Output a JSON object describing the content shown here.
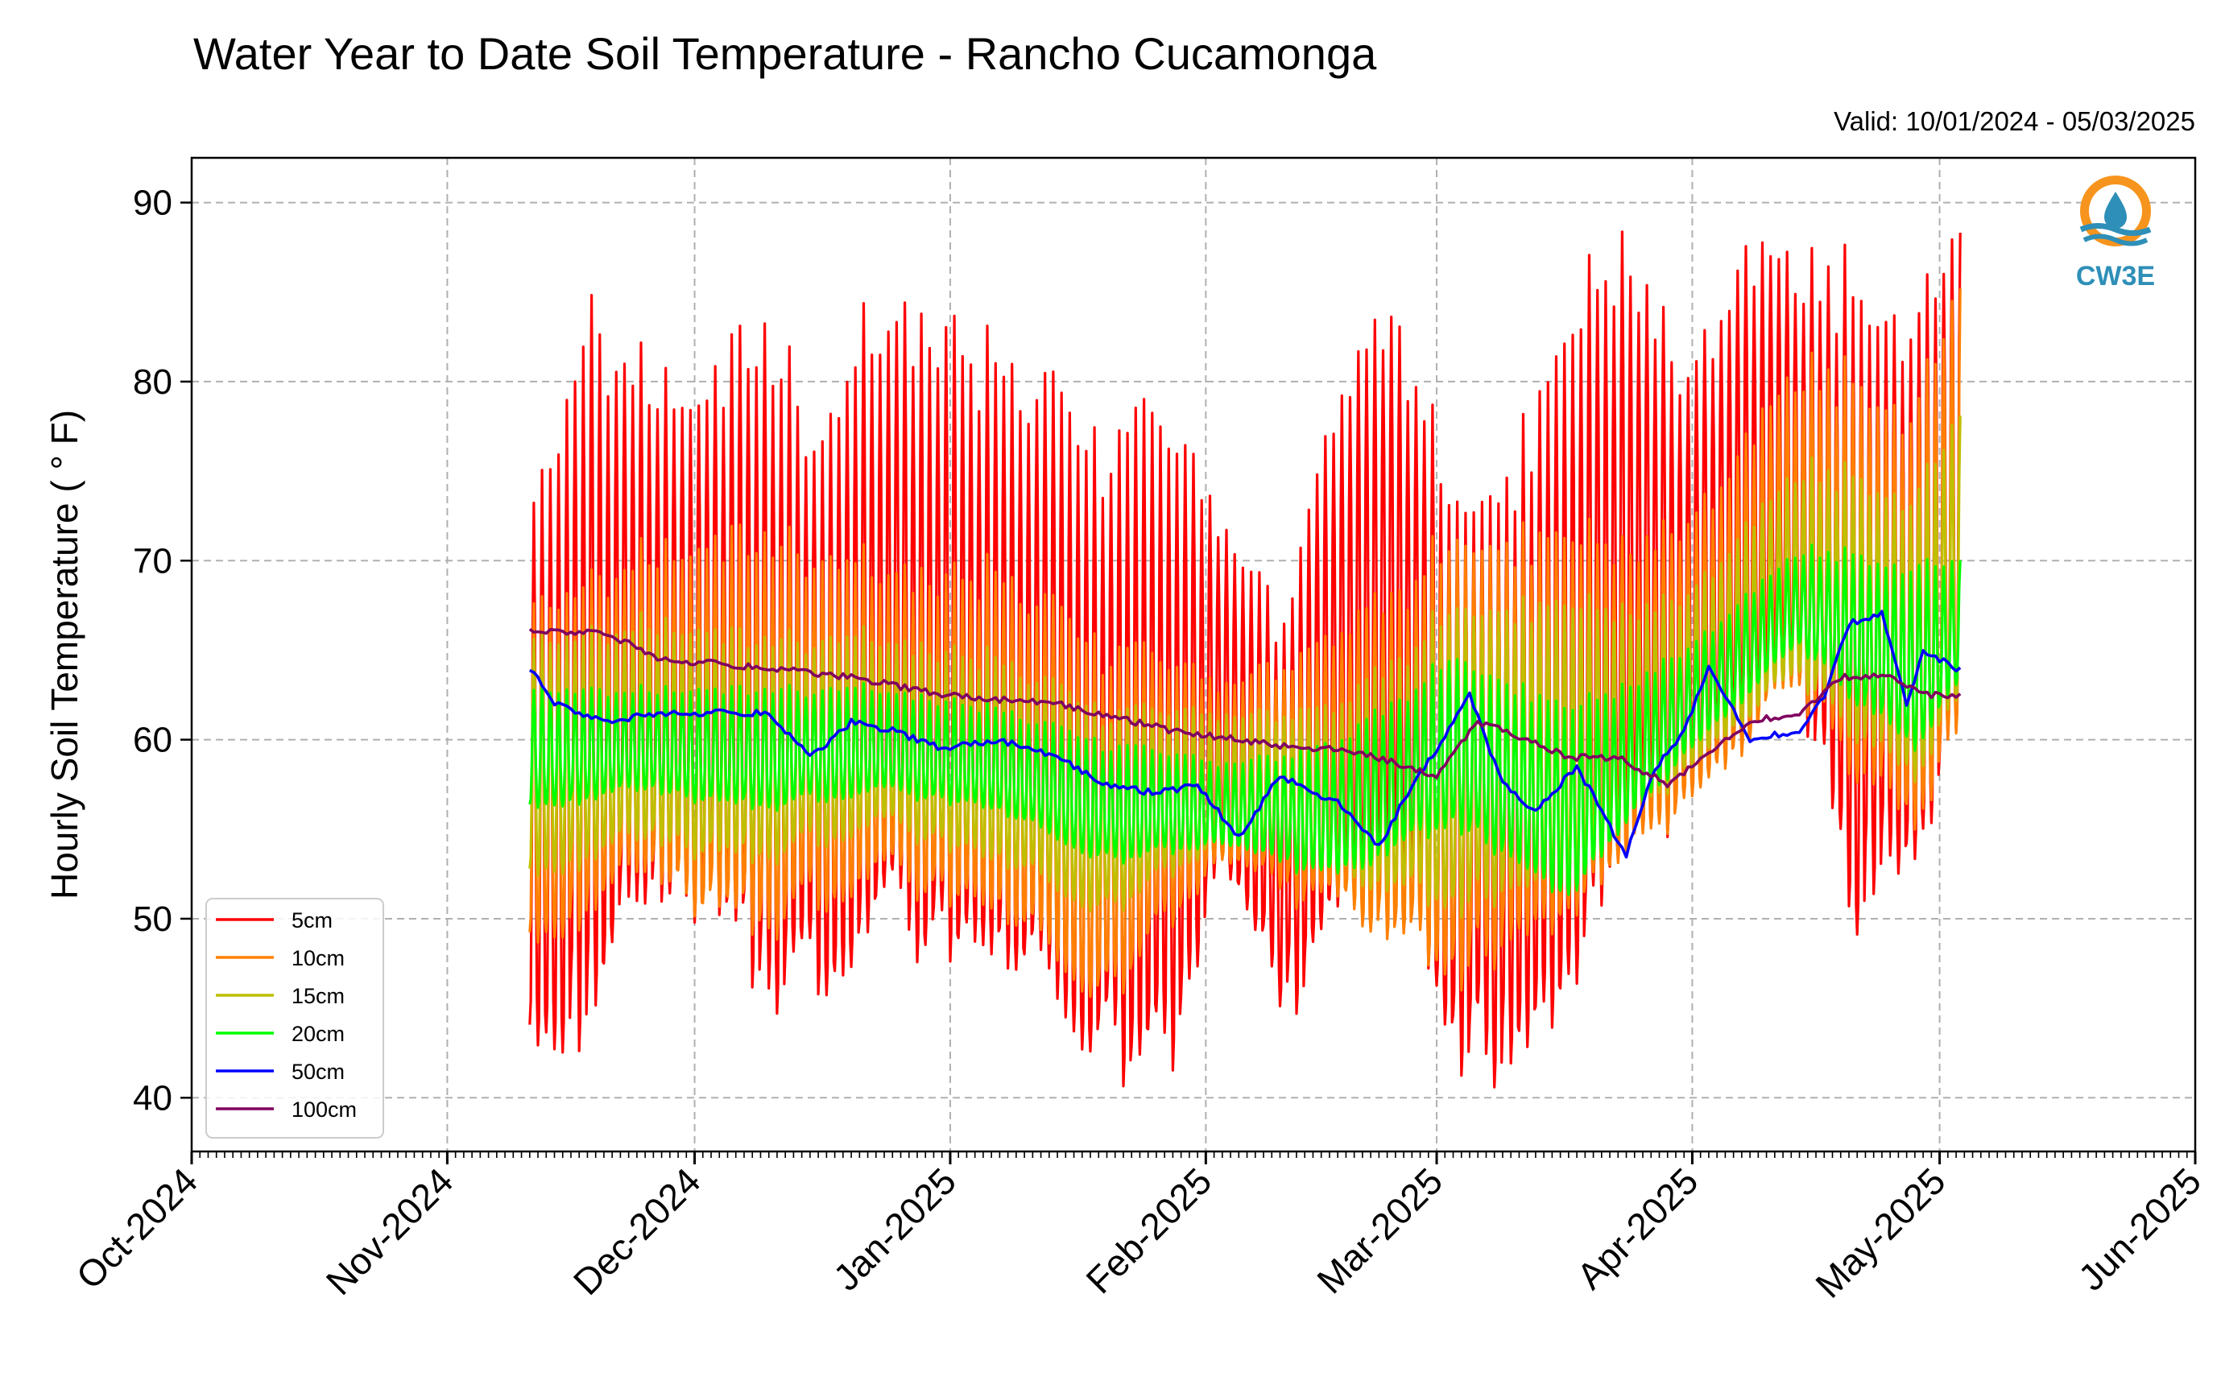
{
  "chart_data": {
    "type": "line",
    "title": "Water Year to Date Soil Temperature - Rancho Cucamonga",
    "subtitle": "Valid: 10/01/2024 - 05/03/2025",
    "ylabel": "Hourly Soil Temperature ( ° F)",
    "xlabel": "",
    "ylim": [
      37,
      92.5
    ],
    "yticks": [
      40,
      50,
      60,
      70,
      80,
      90
    ],
    "xlim": [
      "2024-10-01",
      "2025-06-01"
    ],
    "xticks": [
      {
        "date": "2024-10-01",
        "label": "Oct-2024"
      },
      {
        "date": "2024-11-01",
        "label": "Nov-2024"
      },
      {
        "date": "2024-12-01",
        "label": "Dec-2024"
      },
      {
        "date": "2025-01-01",
        "label": "Jan-2025"
      },
      {
        "date": "2025-02-01",
        "label": "Feb-2025"
      },
      {
        "date": "2025-03-01",
        "label": "Mar-2025"
      },
      {
        "date": "2025-04-01",
        "label": "Apr-2025"
      },
      {
        "date": "2025-05-01",
        "label": "May-2025"
      },
      {
        "date": "2025-06-01",
        "label": "Jun-2025"
      }
    ],
    "grid": true,
    "legend_position": "lower-left",
    "logo_text": "CW3E",
    "series": [
      {
        "name": "5cm",
        "color": "#ff0000",
        "kind": "diurnal",
        "amp_scale": 1.0,
        "x": [
          "2024-11-11",
          "2024-11-18",
          "2024-11-25",
          "2024-12-02",
          "2024-12-09",
          "2024-12-16",
          "2024-12-23",
          "2024-12-30",
          "2025-01-06",
          "2025-01-13",
          "2025-01-20",
          "2025-01-27",
          "2025-02-03",
          "2025-02-10",
          "2025-02-17",
          "2025-02-24",
          "2025-03-03",
          "2025-03-10",
          "2025-03-17",
          "2025-03-24",
          "2025-03-31",
          "2025-04-07",
          "2025-04-14",
          "2025-04-21",
          "2025-04-28",
          "2025-05-03"
        ],
        "max": [
          73,
          85,
          81,
          80,
          84,
          78,
          84,
          85,
          82,
          80,
          78,
          79,
          74,
          68,
          79,
          85,
          74,
          76,
          84,
          90,
          80,
          88,
          88,
          86,
          84,
          88
        ],
        "min": [
          42,
          44,
          50,
          51,
          46,
          46,
          49,
          48,
          47,
          45,
          42,
          40,
          53,
          45,
          48,
          52,
          42,
          41,
          46,
          54,
          56,
          60,
          62,
          50,
          52,
          60
        ]
      },
      {
        "name": "10cm",
        "color": "#ff8000",
        "kind": "diurnal",
        "amp_scale": 0.78,
        "x": [
          "2024-11-11",
          "2024-11-25",
          "2024-12-09",
          "2024-12-23",
          "2025-01-06",
          "2025-01-20",
          "2025-02-03",
          "2025-02-17",
          "2025-03-03",
          "2025-03-17",
          "2025-03-31",
          "2025-04-14",
          "2025-04-28",
          "2025-05-03"
        ],
        "max": [
          68,
          71,
          72,
          70,
          70,
          66,
          64,
          66,
          72,
          72,
          72,
          82,
          79,
          85
        ],
        "min": [
          48,
          52,
          49,
          52,
          50,
          45,
          53,
          50,
          46,
          50,
          56,
          62,
          54,
          60
        ]
      },
      {
        "name": "15cm",
        "color": "#bfbf00",
        "kind": "diurnal",
        "amp_scale": 0.6,
        "x": [
          "2024-11-11",
          "2024-11-25",
          "2024-12-09",
          "2024-12-23",
          "2025-01-06",
          "2025-01-20",
          "2025-02-03",
          "2025-02-17",
          "2025-03-03",
          "2025-03-17",
          "2025-03-31",
          "2025-04-14",
          "2025-04-28",
          "2025-05-03"
        ],
        "max": [
          66,
          67,
          66,
          66,
          65,
          62,
          62,
          62,
          68,
          68,
          68,
          76,
          74,
          78
        ],
        "min": [
          52,
          54,
          53,
          55,
          53,
          50,
          54,
          52,
          50,
          52,
          58,
          63,
          57,
          62
        ]
      },
      {
        "name": "20cm",
        "color": "#00ff00",
        "kind": "diurnal",
        "amp_scale": 0.5,
        "x": [
          "2024-11-11",
          "2024-11-25",
          "2024-12-09",
          "2024-12-23",
          "2025-01-06",
          "2025-01-20",
          "2025-02-03",
          "2025-02-17",
          "2025-03-03",
          "2025-03-17",
          "2025-03-31",
          "2025-04-14",
          "2025-04-28",
          "2025-05-03"
        ],
        "max": [
          63,
          63,
          63,
          63,
          62,
          60,
          59,
          60,
          65,
          62,
          65,
          71,
          70,
          70
        ],
        "min": [
          56,
          57,
          56,
          57,
          56,
          53,
          54,
          52,
          55,
          51,
          59,
          65,
          59,
          63
        ]
      },
      {
        "name": "50cm",
        "color": "#0000ff",
        "kind": "line",
        "x": [
          "2024-11-11",
          "2024-11-14",
          "2024-11-20",
          "2024-11-27",
          "2024-12-01",
          "2024-12-05",
          "2024-12-10",
          "2024-12-15",
          "2024-12-20",
          "2024-12-25",
          "2024-12-31",
          "2025-01-07",
          "2025-01-14",
          "2025-01-20",
          "2025-01-26",
          "2025-01-31",
          "2025-02-05",
          "2025-02-10",
          "2025-02-14",
          "2025-02-17",
          "2025-02-22",
          "2025-02-26",
          "2025-03-01",
          "2025-03-05",
          "2025-03-09",
          "2025-03-13",
          "2025-03-18",
          "2025-03-24",
          "2025-03-27",
          "2025-03-31",
          "2025-04-03",
          "2025-04-08",
          "2025-04-14",
          "2025-04-17",
          "2025-04-20",
          "2025-04-24",
          "2025-04-27",
          "2025-04-29",
          "2025-05-03"
        ],
        "y": [
          64,
          62,
          61,
          61.5,
          61.5,
          61.5,
          61.5,
          59,
          61,
          60.5,
          59.5,
          60,
          59,
          57.5,
          57,
          57.5,
          54.5,
          58,
          57,
          56.5,
          54,
          57.5,
          59.5,
          62.5,
          57.5,
          56,
          58.5,
          53.5,
          58,
          60.5,
          64,
          60,
          60.5,
          62.5,
          66.5,
          67,
          62,
          65,
          64
        ]
      },
      {
        "name": "100cm",
        "color": "#800060",
        "kind": "line",
        "x": [
          "2024-11-11",
          "2024-11-20",
          "2024-11-27",
          "2024-12-10",
          "2024-12-20",
          "2024-12-31",
          "2025-01-14",
          "2025-01-28",
          "2025-02-05",
          "2025-02-12",
          "2025-02-16",
          "2025-02-22",
          "2025-03-01",
          "2025-03-06",
          "2025-03-12",
          "2025-03-17",
          "2025-03-23",
          "2025-03-29",
          "2025-04-01",
          "2025-04-08",
          "2025-04-14",
          "2025-04-19",
          "2025-04-25",
          "2025-04-30",
          "2025-05-03"
        ],
        "y": [
          66,
          66,
          64.5,
          64,
          63.5,
          62.5,
          62,
          60.5,
          60,
          59.5,
          59.5,
          59,
          58,
          61,
          60,
          59,
          59,
          57.5,
          58.5,
          61,
          61.5,
          63.5,
          63.5,
          62.5,
          62.5
        ]
      }
    ]
  }
}
